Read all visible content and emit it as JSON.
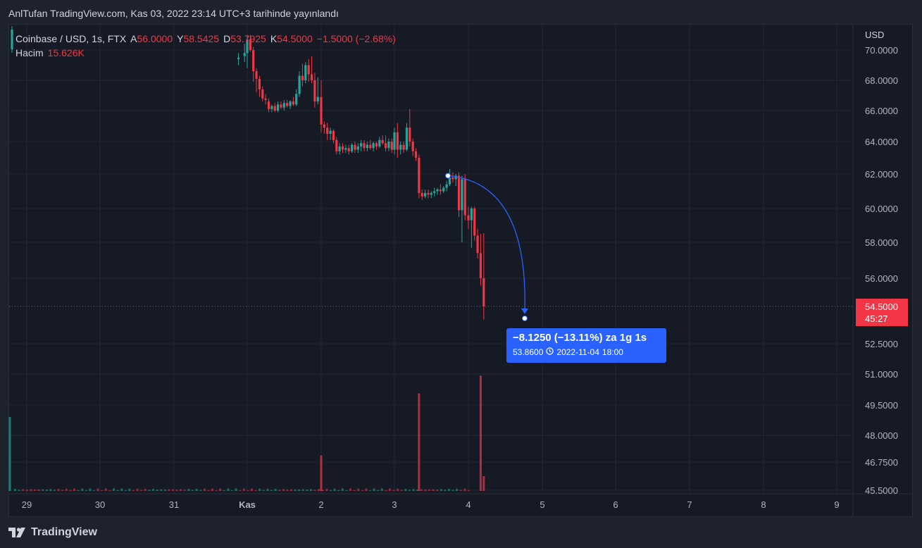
{
  "caption": "AnlTufan TradingView.com, Kas 03, 2022 23:14 UTC+3 tarihinde yayınlandı",
  "brand": "TradingView",
  "legend": {
    "symbol": "Coinbase / USD, 1s, FTX",
    "open_label": "A",
    "open": "56.0000",
    "high_label": "Y",
    "high": "58.5425",
    "low_label": "D",
    "low": "53.7925",
    "close_label": "K",
    "close": "54.5000",
    "change": "−1.5000 (−2.68%)",
    "volume_label": "Hacim",
    "volume": "15.626K"
  },
  "price_axis": {
    "currency": "USD",
    "tick_labels": [
      "70.0000",
      "68.0000",
      "66.0000",
      "64.0000",
      "62.0000",
      "60.0000",
      "58.0000",
      "56.0000",
      "52.5000",
      "51.0000",
      "49.5000",
      "48.0000",
      "46.7500",
      "45.5000"
    ]
  },
  "last_price": {
    "value": "54.5000",
    "countdown": "45:27"
  },
  "measure": {
    "main": "−8.1250 (−13.11%) za 1g 1s",
    "price": "53.8600",
    "date": "2022-11-04",
    "time": "18:00"
  },
  "colors": {
    "up": "#26a69a",
    "down": "#f23645",
    "measure": "#2962ff",
    "grid": "#232733",
    "background": "#161a25"
  },
  "chart_data": {
    "type": "candlestick",
    "x_tick_labels": [
      "29",
      "30",
      "31",
      "Kas",
      "2",
      "3",
      "4",
      "5",
      "6",
      "7",
      "8",
      "9"
    ],
    "y_label": "USD",
    "price_ylim": [
      45.5,
      71.0
    ],
    "last_close": 54.5,
    "series": [
      {
        "t": "10-31 21:00",
        "o": 69.4,
        "h": 69.8,
        "l": 69.0,
        "c": 69.5
      },
      {
        "t": "10-31 23:00",
        "o": 69.6,
        "h": 70.4,
        "l": 69.2,
        "c": 69.8
      },
      {
        "t": "11-01 00:00",
        "o": 69.8,
        "h": 71.0,
        "l": 68.8,
        "c": 70.7
      },
      {
        "t": "11-01 01:00",
        "o": 70.7,
        "h": 71.0,
        "l": 69.9,
        "c": 70.0
      },
      {
        "t": "11-01 02:00",
        "o": 70.0,
        "h": 70.2,
        "l": 67.9,
        "c": 68.6
      },
      {
        "t": "11-01 03:00",
        "o": 68.6,
        "h": 68.8,
        "l": 67.2,
        "c": 68.1
      },
      {
        "t": "11-01 04:00",
        "o": 68.1,
        "h": 68.3,
        "l": 66.9,
        "c": 67.4
      },
      {
        "t": "11-01 05:00",
        "o": 67.4,
        "h": 67.6,
        "l": 66.6,
        "c": 66.8
      },
      {
        "t": "11-01 06:00",
        "o": 66.8,
        "h": 67.1,
        "l": 66.4,
        "c": 66.7
      },
      {
        "t": "11-01 07:00",
        "o": 66.6,
        "h": 66.8,
        "l": 65.9,
        "c": 66.1
      },
      {
        "t": "11-01 08:00",
        "o": 66.1,
        "h": 66.4,
        "l": 65.9,
        "c": 66.3
      },
      {
        "t": "11-01 09:00",
        "o": 66.3,
        "h": 66.5,
        "l": 65.9,
        "c": 66.0
      },
      {
        "t": "11-01 10:00",
        "o": 66.0,
        "h": 66.6,
        "l": 65.9,
        "c": 66.4
      },
      {
        "t": "11-01 11:00",
        "o": 66.4,
        "h": 66.6,
        "l": 66.1,
        "c": 66.2
      },
      {
        "t": "11-01 12:00",
        "o": 66.2,
        "h": 66.7,
        "l": 66.0,
        "c": 66.5
      },
      {
        "t": "11-01 13:00",
        "o": 66.5,
        "h": 66.7,
        "l": 66.2,
        "c": 66.3
      },
      {
        "t": "11-01 14:00",
        "o": 66.3,
        "h": 66.7,
        "l": 66.1,
        "c": 66.6
      },
      {
        "t": "11-01 15:00",
        "o": 66.6,
        "h": 66.9,
        "l": 66.3,
        "c": 66.4
      },
      {
        "t": "11-01 16:00",
        "o": 66.4,
        "h": 67.4,
        "l": 66.3,
        "c": 67.1
      },
      {
        "t": "11-01 17:00",
        "o": 67.1,
        "h": 68.6,
        "l": 66.9,
        "c": 68.3
      },
      {
        "t": "11-01 18:00",
        "o": 68.3,
        "h": 69.1,
        "l": 67.6,
        "c": 68.0
      },
      {
        "t": "11-01 19:00",
        "o": 68.0,
        "h": 69.2,
        "l": 67.8,
        "c": 69.0
      },
      {
        "t": "11-01 20:00",
        "o": 69.0,
        "h": 69.4,
        "l": 67.9,
        "c": 68.4
      },
      {
        "t": "11-01 21:00",
        "o": 68.4,
        "h": 69.6,
        "l": 67.8,
        "c": 68.0
      },
      {
        "t": "11-01 22:00",
        "o": 68.0,
        "h": 68.5,
        "l": 66.2,
        "c": 66.6
      },
      {
        "t": "11-01 23:00",
        "o": 66.6,
        "h": 68.2,
        "l": 66.4,
        "c": 66.9
      },
      {
        "t": "11-02 00:00",
        "o": 66.9,
        "h": 68.0,
        "l": 64.6,
        "c": 65.1
      },
      {
        "t": "11-02 01:00",
        "o": 65.1,
        "h": 65.3,
        "l": 64.5,
        "c": 64.9
      },
      {
        "t": "11-02 02:00",
        "o": 64.9,
        "h": 65.2,
        "l": 64.1,
        "c": 64.5
      },
      {
        "t": "11-02 03:00",
        "o": 64.5,
        "h": 64.9,
        "l": 64.1,
        "c": 64.7
      },
      {
        "t": "11-02 04:00",
        "o": 64.7,
        "h": 64.8,
        "l": 63.9,
        "c": 64.1
      },
      {
        "t": "11-02 05:00",
        "o": 64.1,
        "h": 64.3,
        "l": 63.2,
        "c": 63.4
      },
      {
        "t": "11-02 06:00",
        "o": 63.4,
        "h": 63.9,
        "l": 63.2,
        "c": 63.7
      },
      {
        "t": "11-02 07:00",
        "o": 63.7,
        "h": 63.9,
        "l": 63.3,
        "c": 63.5
      },
      {
        "t": "11-02 08:00",
        "o": 63.5,
        "h": 63.8,
        "l": 63.3,
        "c": 63.6
      },
      {
        "t": "11-02 09:00",
        "o": 63.6,
        "h": 63.8,
        "l": 63.2,
        "c": 63.4
      },
      {
        "t": "11-02 10:00",
        "o": 63.4,
        "h": 63.9,
        "l": 63.3,
        "c": 63.8
      },
      {
        "t": "11-02 11:00",
        "o": 63.8,
        "h": 64.0,
        "l": 63.3,
        "c": 63.5
      },
      {
        "t": "11-02 12:00",
        "o": 63.5,
        "h": 63.9,
        "l": 63.3,
        "c": 63.7
      },
      {
        "t": "11-02 13:00",
        "o": 63.7,
        "h": 64.1,
        "l": 63.4,
        "c": 63.9
      },
      {
        "t": "11-02 14:00",
        "o": 63.9,
        "h": 64.1,
        "l": 63.4,
        "c": 63.6
      },
      {
        "t": "11-02 15:00",
        "o": 63.6,
        "h": 64.0,
        "l": 63.4,
        "c": 63.8
      },
      {
        "t": "11-02 16:00",
        "o": 63.8,
        "h": 64.1,
        "l": 63.5,
        "c": 63.6
      },
      {
        "t": "11-02 17:00",
        "o": 63.6,
        "h": 64.0,
        "l": 63.4,
        "c": 63.9
      },
      {
        "t": "11-02 18:00",
        "o": 63.9,
        "h": 64.0,
        "l": 63.5,
        "c": 63.7
      },
      {
        "t": "11-02 19:00",
        "o": 63.7,
        "h": 64.3,
        "l": 63.6,
        "c": 64.1
      },
      {
        "t": "11-02 20:00",
        "o": 64.1,
        "h": 64.4,
        "l": 63.8,
        "c": 63.9
      },
      {
        "t": "11-02 21:00",
        "o": 63.9,
        "h": 64.4,
        "l": 63.4,
        "c": 63.6
      },
      {
        "t": "11-02 22:00",
        "o": 63.6,
        "h": 64.2,
        "l": 63.4,
        "c": 64.0
      },
      {
        "t": "11-02 23:00",
        "o": 64.0,
        "h": 64.2,
        "l": 63.3,
        "c": 63.5
      },
      {
        "t": "11-03 00:00",
        "o": 63.5,
        "h": 64.9,
        "l": 63.2,
        "c": 64.6
      },
      {
        "t": "11-03 01:00",
        "o": 64.6,
        "h": 65.2,
        "l": 63.0,
        "c": 63.5
      },
      {
        "t": "11-03 02:00",
        "o": 63.5,
        "h": 64.0,
        "l": 63.2,
        "c": 63.8
      },
      {
        "t": "11-03 03:00",
        "o": 63.8,
        "h": 64.0,
        "l": 63.3,
        "c": 63.5
      },
      {
        "t": "11-03 04:00",
        "o": 63.5,
        "h": 65.2,
        "l": 63.4,
        "c": 64.9
      },
      {
        "t": "11-03 05:00",
        "o": 64.9,
        "h": 66.1,
        "l": 63.7,
        "c": 64.0
      },
      {
        "t": "11-03 06:00",
        "o": 64.0,
        "h": 64.2,
        "l": 63.1,
        "c": 63.4
      },
      {
        "t": "11-03 07:00",
        "o": 63.4,
        "h": 63.6,
        "l": 62.8,
        "c": 63.0
      },
      {
        "t": "11-03 08:00",
        "o": 63.0,
        "h": 63.2,
        "l": 60.6,
        "c": 60.9
      },
      {
        "t": "11-03 09:00",
        "o": 60.9,
        "h": 61.1,
        "l": 60.5,
        "c": 60.7
      },
      {
        "t": "11-03 10:00",
        "o": 60.7,
        "h": 61.1,
        "l": 60.6,
        "c": 60.9
      },
      {
        "t": "11-03 11:00",
        "o": 60.9,
        "h": 61.1,
        "l": 60.6,
        "c": 60.8
      },
      {
        "t": "11-03 12:00",
        "o": 60.8,
        "h": 61.0,
        "l": 60.6,
        "c": 60.9
      },
      {
        "t": "11-03 13:00",
        "o": 60.9,
        "h": 61.2,
        "l": 60.7,
        "c": 61.0
      },
      {
        "t": "11-03 14:00",
        "o": 61.0,
        "h": 61.2,
        "l": 60.8,
        "c": 61.1
      },
      {
        "t": "11-03 15:00",
        "o": 61.1,
        "h": 61.4,
        "l": 60.8,
        "c": 61.0
      },
      {
        "t": "11-03 16:00",
        "o": 61.0,
        "h": 61.3,
        "l": 60.9,
        "c": 61.2
      },
      {
        "t": "11-03 17:00",
        "o": 61.2,
        "h": 61.6,
        "l": 61.0,
        "c": 61.4
      },
      {
        "t": "11-03 18:00",
        "o": 61.4,
        "h": 62.3,
        "l": 61.3,
        "c": 61.8
      },
      {
        "t": "11-03 19:00",
        "o": 61.8,
        "h": 62.1,
        "l": 61.5,
        "c": 61.7
      },
      {
        "t": "11-03 20:00",
        "o": 61.7,
        "h": 62.0,
        "l": 61.3,
        "c": 61.9
      },
      {
        "t": "11-03 21:00",
        "o": 61.9,
        "h": 62.1,
        "l": 59.5,
        "c": 59.9
      },
      {
        "t": "11-03 22:00",
        "o": 59.9,
        "h": 61.9,
        "l": 58.0,
        "c": 61.7
      },
      {
        "t": "11-03 23:00",
        "o": 61.7,
        "h": 62.0,
        "l": 59.3,
        "c": 59.6
      },
      {
        "t": "11-04 00:00",
        "o": 59.6,
        "h": 60.1,
        "l": 58.8,
        "c": 59.3
      },
      {
        "t": "11-04 01:00",
        "o": 59.3,
        "h": 60.1,
        "l": 57.7,
        "c": 60.0
      },
      {
        "t": "11-04 02:00",
        "o": 60.0,
        "h": 60.1,
        "l": 58.1,
        "c": 58.4
      },
      {
        "t": "11-04 03:00",
        "o": 58.4,
        "h": 58.8,
        "l": 57.1,
        "c": 57.4
      },
      {
        "t": "11-04 04:00",
        "o": 57.4,
        "h": 58.5,
        "l": 55.6,
        "c": 56.0
      },
      {
        "t": "11-04 05:00",
        "o": 56.0,
        "h": 58.5425,
        "l": 53.7925,
        "c": 54.5
      }
    ],
    "volume_series": {
      "note_unit": "relative",
      "bars": [
        {
          "t": "10-28",
          "v": 25,
          "dir": "up"
        },
        {
          "t": "11-02 00:00",
          "v": 12,
          "dir": "down"
        },
        {
          "t": "11-03 08:00",
          "v": 33,
          "dir": "down"
        },
        {
          "t": "11-04 04:00",
          "v": 39,
          "dir": "down"
        },
        {
          "t": "11-04 05:00",
          "v": 5,
          "dir": "down"
        }
      ]
    },
    "measure_tool": {
      "from": {
        "t": "11-03 22:00",
        "price": 61.9
      },
      "to": {
        "t": "11-04 23:00",
        "price": 53.86
      },
      "change": -8.125,
      "change_pct": -13.11
    }
  }
}
